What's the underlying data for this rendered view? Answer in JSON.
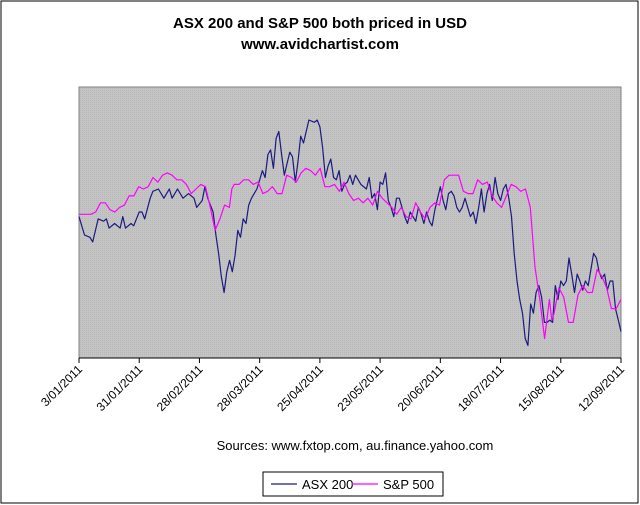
{
  "chart_data": {
    "type": "line",
    "title": "ASX 200 and S&P 500 both priced in USD",
    "subtitle": "www.avidchartist.com",
    "source": "Sources: www.fxtop.com,  au.finance.yahoo.com",
    "xlabel": "",
    "ylabel": "",
    "grid": false,
    "legend_position": "bottom-center",
    "x_tick_labels": [
      "3/01/2011",
      "31/01/2011",
      "28/02/2011",
      "28/03/2011",
      "25/04/2011",
      "23/05/2011",
      "20/06/2011",
      "18/07/2011",
      "15/08/2011",
      "12/09/2011"
    ],
    "ylim": [
      0,
      100
    ],
    "x_count": 181,
    "series": [
      {
        "name": "ASX 200",
        "color": "#1a1a80",
        "knots": [
          [
            0,
            58
          ],
          [
            2,
            50
          ],
          [
            4,
            49
          ],
          [
            5,
            47
          ],
          [
            7,
            57
          ],
          [
            9,
            56
          ],
          [
            10,
            57
          ],
          [
            11,
            53
          ],
          [
            13,
            55
          ],
          [
            15,
            53
          ],
          [
            16,
            58
          ],
          [
            17,
            53
          ],
          [
            19,
            55
          ],
          [
            20,
            54
          ],
          [
            22,
            60
          ],
          [
            23,
            60
          ],
          [
            24,
            57
          ],
          [
            26,
            66
          ],
          [
            27,
            69
          ],
          [
            29,
            70
          ],
          [
            31,
            66
          ],
          [
            33,
            70
          ],
          [
            34,
            66
          ],
          [
            36,
            70
          ],
          [
            38,
            66
          ],
          [
            40,
            68
          ],
          [
            42,
            66
          ],
          [
            43,
            62
          ],
          [
            45,
            65
          ],
          [
            46,
            71
          ],
          [
            47,
            66
          ],
          [
            49,
            60
          ],
          [
            50,
            50
          ],
          [
            51,
            42
          ],
          [
            52,
            32
          ],
          [
            53,
            25
          ],
          [
            54,
            34
          ],
          [
            55,
            39
          ],
          [
            56,
            34
          ],
          [
            57,
            41
          ],
          [
            58,
            52
          ],
          [
            59,
            49
          ],
          [
            60,
            57
          ],
          [
            61,
            55
          ],
          [
            62,
            63
          ],
          [
            63,
            66
          ],
          [
            64,
            68
          ],
          [
            65,
            70
          ],
          [
            66,
            74
          ],
          [
            67,
            78
          ],
          [
            68,
            75
          ],
          [
            69,
            85
          ],
          [
            70,
            87
          ],
          [
            71,
            79
          ],
          [
            72,
            92
          ],
          [
            73,
            95
          ],
          [
            74,
            85
          ],
          [
            75,
            76
          ],
          [
            76,
            81
          ],
          [
            77,
            86
          ],
          [
            78,
            84
          ],
          [
            79,
            73
          ],
          [
            80,
            82
          ],
          [
            81,
            93
          ],
          [
            82,
            90
          ],
          [
            84,
            100
          ],
          [
            86,
            99
          ],
          [
            87,
            100
          ],
          [
            88,
            97
          ],
          [
            89,
            88
          ],
          [
            90,
            75
          ],
          [
            91,
            80
          ],
          [
            92,
            83
          ],
          [
            93,
            75
          ],
          [
            94,
            74
          ],
          [
            95,
            78
          ],
          [
            96,
            69
          ],
          [
            97,
            72
          ],
          [
            98,
            73
          ],
          [
            99,
            76
          ],
          [
            100,
            72
          ],
          [
            101,
            76
          ],
          [
            103,
            72
          ],
          [
            105,
            70
          ],
          [
            106,
            75
          ],
          [
            107,
            66
          ],
          [
            108,
            68
          ],
          [
            109,
            61
          ],
          [
            110,
            73
          ],
          [
            111,
            72
          ],
          [
            112,
            77
          ],
          [
            113,
            65
          ],
          [
            114,
            62
          ],
          [
            115,
            58
          ],
          [
            116,
            66
          ],
          [
            117,
            66
          ],
          [
            118,
            62
          ],
          [
            119,
            58
          ],
          [
            120,
            55
          ],
          [
            121,
            60
          ],
          [
            123,
            56
          ],
          [
            124,
            62
          ],
          [
            125,
            59
          ],
          [
            126,
            55
          ],
          [
            127,
            60
          ],
          [
            128,
            56
          ],
          [
            129,
            54
          ],
          [
            130,
            61
          ],
          [
            131,
            66
          ],
          [
            132,
            71
          ],
          [
            133,
            65
          ],
          [
            134,
            61
          ],
          [
            135,
            68
          ],
          [
            136,
            69
          ],
          [
            137,
            67
          ],
          [
            138,
            62
          ],
          [
            139,
            60
          ],
          [
            140,
            62
          ],
          [
            141,
            66
          ],
          [
            142,
            62
          ],
          [
            143,
            58
          ],
          [
            144,
            60
          ],
          [
            145,
            55
          ],
          [
            146,
            62
          ],
          [
            147,
            70
          ],
          [
            148,
            60
          ],
          [
            149,
            68
          ],
          [
            150,
            72
          ],
          [
            151,
            65
          ],
          [
            152,
            75
          ],
          [
            153,
            68
          ],
          [
            154,
            65
          ],
          [
            155,
            70
          ],
          [
            156,
            72
          ],
          [
            157,
            66
          ],
          [
            158,
            58
          ],
          [
            159,
            42
          ],
          [
            160,
            30
          ],
          [
            161,
            22
          ],
          [
            162,
            16
          ],
          [
            163,
            5
          ],
          [
            164,
            2
          ],
          [
            165,
            20
          ],
          [
            166,
            16
          ],
          [
            167,
            25
          ],
          [
            168,
            28
          ],
          [
            169,
            23
          ],
          [
            170,
            12
          ],
          [
            171,
            12
          ],
          [
            172,
            13
          ],
          [
            173,
            12
          ],
          [
            174,
            28
          ],
          [
            175,
            22
          ],
          [
            176,
            30
          ],
          [
            177,
            28
          ],
          [
            178,
            30
          ],
          [
            179,
            40
          ],
          [
            180,
            33
          ],
          [
            181,
            25
          ],
          [
            182,
            33
          ],
          [
            183,
            30
          ],
          [
            184,
            26
          ],
          [
            185,
            30
          ],
          [
            186,
            28
          ],
          [
            187,
            35
          ],
          [
            188,
            42
          ],
          [
            189,
            40
          ],
          [
            190,
            34
          ],
          [
            191,
            31
          ],
          [
            192,
            33
          ],
          [
            193,
            26
          ],
          [
            194,
            30
          ],
          [
            195,
            30
          ],
          [
            196,
            18
          ],
          [
            197,
            13
          ],
          [
            198,
            8
          ]
        ]
      },
      {
        "name": "S&P 500",
        "color": "#ff00ff",
        "knots": [
          [
            0,
            59
          ],
          [
            3,
            59
          ],
          [
            5,
            59
          ],
          [
            7,
            60
          ],
          [
            9,
            64
          ],
          [
            11,
            64
          ],
          [
            13,
            61
          ],
          [
            15,
            60
          ],
          [
            17,
            62
          ],
          [
            19,
            63
          ],
          [
            21,
            67
          ],
          [
            23,
            67
          ],
          [
            25,
            71
          ],
          [
            27,
            70
          ],
          [
            29,
            71
          ],
          [
            31,
            75
          ],
          [
            33,
            73
          ],
          [
            35,
            76
          ],
          [
            37,
            77
          ],
          [
            39,
            76
          ],
          [
            41,
            74
          ],
          [
            43,
            74
          ],
          [
            45,
            72
          ],
          [
            47,
            68
          ],
          [
            49,
            70
          ],
          [
            51,
            72
          ],
          [
            53,
            71
          ],
          [
            55,
            62
          ],
          [
            57,
            52
          ],
          [
            59,
            57
          ],
          [
            61,
            63
          ],
          [
            63,
            62
          ],
          [
            64,
            70
          ],
          [
            65,
            72
          ],
          [
            67,
            72
          ],
          [
            69,
            74
          ],
          [
            71,
            74
          ],
          [
            73,
            72
          ],
          [
            75,
            73
          ],
          [
            77,
            68
          ],
          [
            79,
            69
          ],
          [
            81,
            71
          ],
          [
            83,
            68
          ],
          [
            85,
            68
          ],
          [
            87,
            76
          ],
          [
            89,
            75
          ],
          [
            91,
            73
          ],
          [
            93,
            77
          ],
          [
            95,
            79
          ],
          [
            97,
            78
          ],
          [
            99,
            76
          ],
          [
            101,
            79
          ],
          [
            103,
            71
          ],
          [
            105,
            71
          ],
          [
            107,
            72
          ],
          [
            109,
            69
          ],
          [
            111,
            73
          ],
          [
            113,
            68
          ],
          [
            115,
            65
          ],
          [
            117,
            66
          ],
          [
            119,
            64
          ],
          [
            121,
            66
          ],
          [
            123,
            63
          ],
          [
            125,
            69
          ],
          [
            127,
            66
          ],
          [
            129,
            64
          ],
          [
            131,
            62
          ],
          [
            133,
            59
          ],
          [
            135,
            62
          ],
          [
            137,
            58
          ],
          [
            139,
            57
          ],
          [
            141,
            64
          ],
          [
            143,
            60
          ],
          [
            145,
            57
          ],
          [
            147,
            62
          ],
          [
            149,
            64
          ],
          [
            151,
            63
          ],
          [
            153,
            74
          ],
          [
            155,
            76
          ],
          [
            157,
            76
          ],
          [
            159,
            76
          ],
          [
            161,
            69
          ],
          [
            163,
            68
          ],
          [
            165,
            68
          ],
          [
            167,
            74
          ],
          [
            169,
            72
          ],
          [
            171,
            73
          ],
          [
            173,
            67
          ],
          [
            175,
            64
          ],
          [
            177,
            62
          ],
          [
            179,
            67
          ],
          [
            181,
            72
          ],
          [
            183,
            71
          ],
          [
            185,
            69
          ],
          [
            187,
            70
          ],
          [
            189,
            62
          ],
          [
            191,
            36
          ],
          [
            193,
            22
          ],
          [
            195,
            5
          ],
          [
            197,
            22
          ],
          [
            198,
            13
          ],
          [
            199,
            16
          ],
          [
            201,
            27
          ],
          [
            203,
            23
          ],
          [
            205,
            12
          ],
          [
            207,
            12
          ],
          [
            209,
            24
          ],
          [
            211,
            28
          ],
          [
            213,
            25
          ],
          [
            215,
            25
          ],
          [
            217,
            35
          ],
          [
            219,
            32
          ],
          [
            221,
            27
          ],
          [
            223,
            18
          ],
          [
            225,
            18
          ],
          [
            227,
            22
          ]
        ]
      }
    ]
  }
}
